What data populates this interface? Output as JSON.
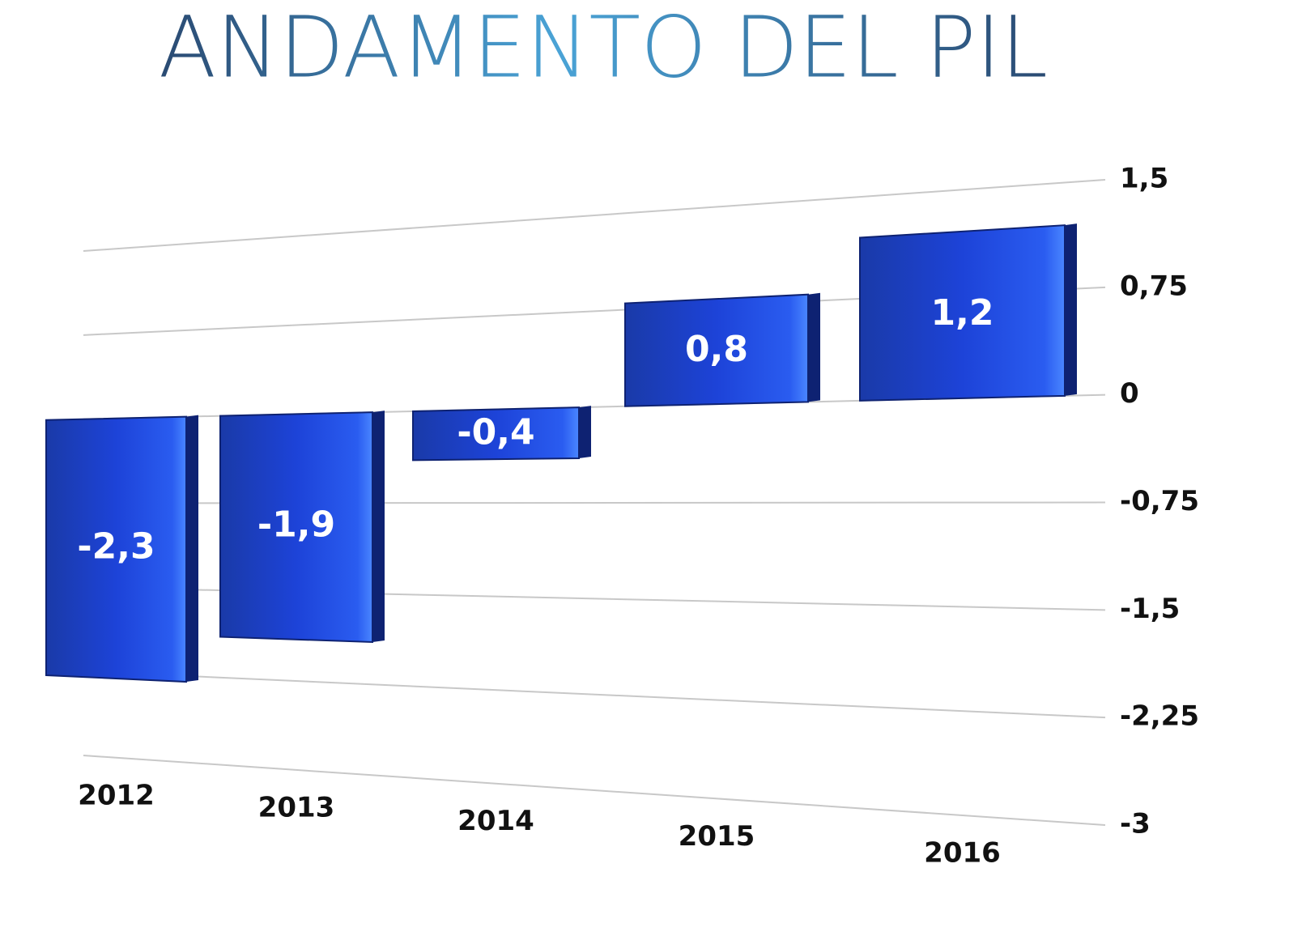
{
  "chart_data": {
    "type": "bar",
    "title": "ANDAMENTO DEL PIL",
    "categories": [
      "2012",
      "2013",
      "2014",
      "2015",
      "2016"
    ],
    "values": [
      -2.3,
      -1.9,
      -0.4,
      0.8,
      1.2
    ],
    "value_labels": [
      "-2,3",
      "-1,9",
      "-0,4",
      "0,8",
      "1,2"
    ],
    "color": "#1c3fd6",
    "ylim": [
      -3,
      1.5
    ],
    "yticks": [
      {
        "value": 1.5,
        "label": "1,5"
      },
      {
        "value": 0.75,
        "label": "0,75"
      },
      0,
      {
        "value": -0.75,
        "label": "-0,75"
      },
      {
        "value": -1.5,
        "label": "-1,5"
      },
      {
        "value": -2.25,
        "label": "-2,25"
      },
      -3
    ],
    "grid": true
  }
}
